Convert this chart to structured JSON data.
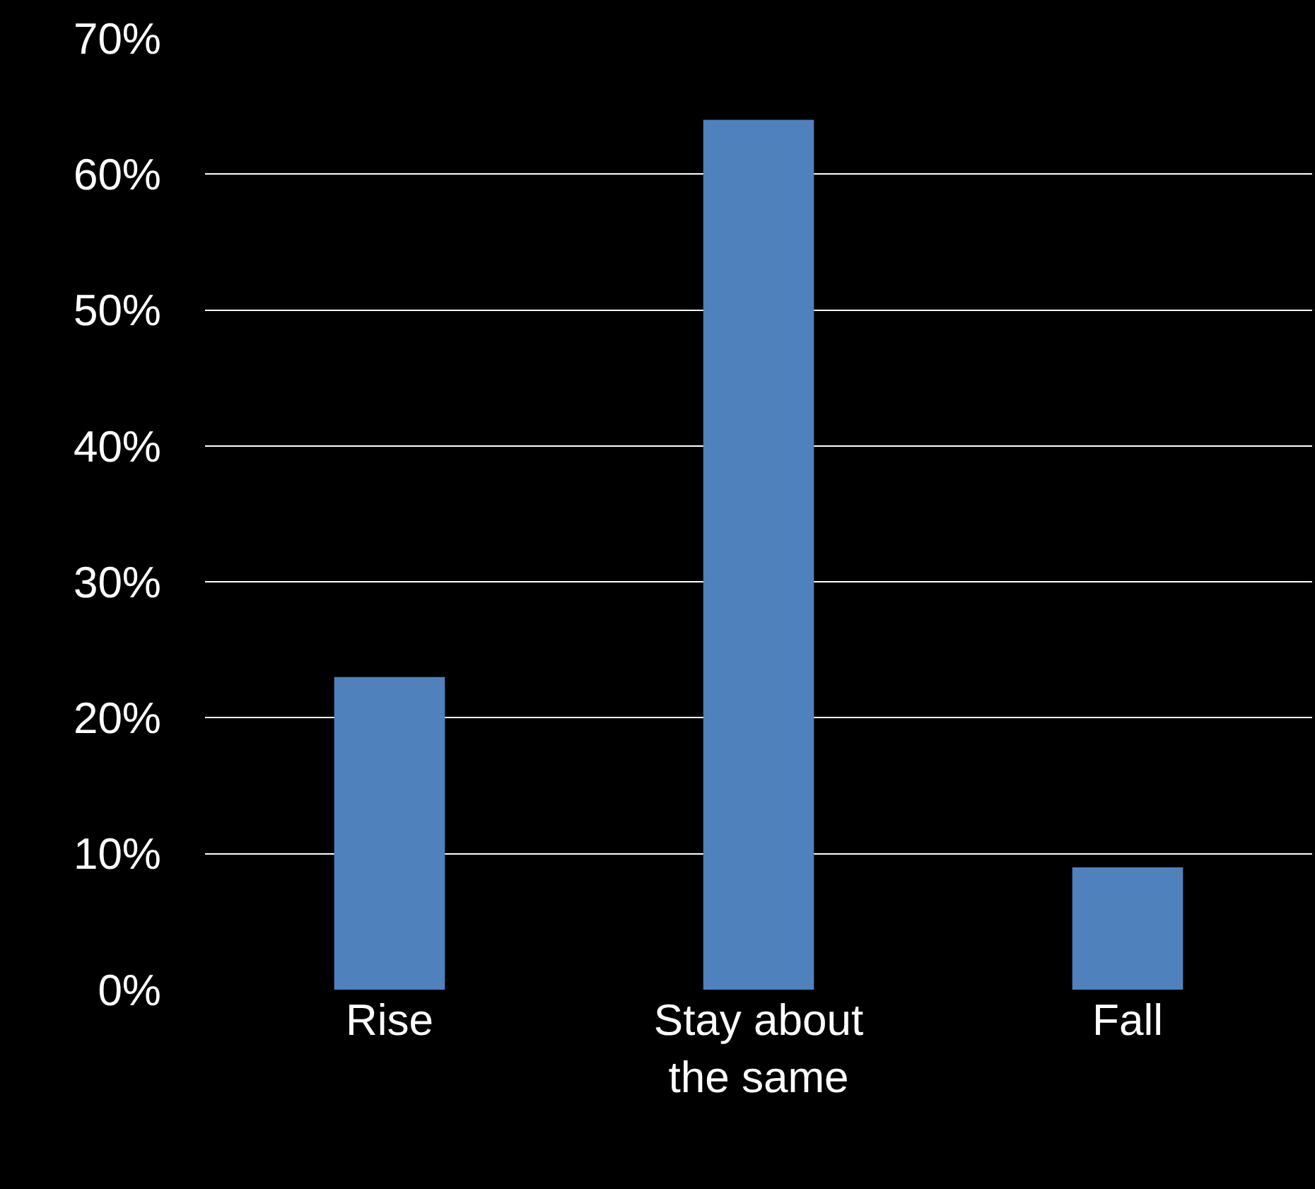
{
  "chart_data": {
    "type": "bar",
    "categories": [
      "Rise",
      "Stay about the same",
      "Fall"
    ],
    "values": [
      0.23,
      0.64,
      0.09
    ],
    "color": "#4f81bd",
    "ylim": [
      0,
      0.7
    ],
    "yticks": [
      {
        "value": 0,
        "label": "0%"
      },
      {
        "value": 0.1,
        "label": "10%"
      },
      {
        "value": 0.2,
        "label": "20%"
      },
      {
        "value": 0.3,
        "label": "30%"
      },
      {
        "value": 0.4,
        "label": "40%"
      },
      {
        "value": 0.5,
        "label": "50%"
      },
      {
        "value": 0.6,
        "label": "60%"
      },
      {
        "value": 0.7,
        "label": "70%"
      }
    ],
    "grid": "y",
    "legend": false
  }
}
